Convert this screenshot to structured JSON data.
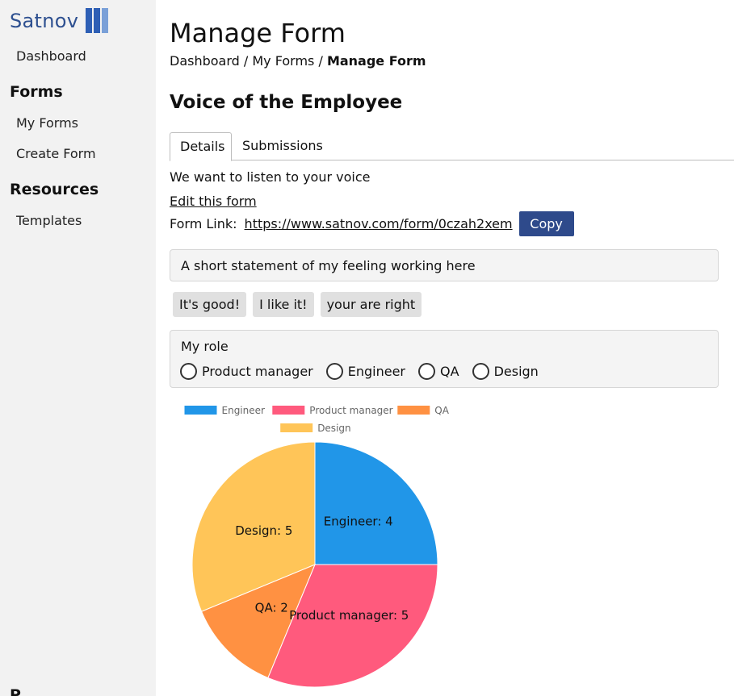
{
  "sidebar": {
    "brand": "Satnov",
    "brand_colors": [
      "#2e5fb5",
      "#2e5fb5",
      "#7aa0d8"
    ],
    "dashboard": "Dashboard",
    "forms_heading": "Forms",
    "my_forms": "My Forms",
    "create_form": "Create Form",
    "resources_heading": "Resources",
    "templates": "Templates",
    "cut_off_heading": "P"
  },
  "header": {
    "title": "Manage Form",
    "breadcrumb": {
      "dashboard": "Dashboard",
      "separator": " / ",
      "my_forms": "My Forms",
      "current": "Manage Form"
    }
  },
  "form": {
    "title": "Voice of the Employee",
    "tabs": [
      {
        "label": "Details",
        "active": true
      },
      {
        "label": "Submissions",
        "active": false
      }
    ],
    "description": "We want to listen to your voice",
    "edit_link": "Edit this form",
    "link_label": "Form Link:",
    "link_url": "https://www.satnov.com/form/0czah2xem",
    "copy_button": "Copy",
    "accent_color": "#2e4a8b"
  },
  "questions": {
    "q1": {
      "label": "A short statement of my feeling working here",
      "answers": [
        "It's good!",
        "I like it!",
        "your are right"
      ]
    },
    "q2": {
      "label": "My role",
      "options": [
        "Product manager",
        "Engineer",
        "QA",
        "Design"
      ],
      "selected": null
    }
  },
  "chart_data": {
    "type": "pie",
    "title": "",
    "legend_position": "top",
    "categories": [
      "Engineer",
      "Product manager",
      "QA",
      "Design"
    ],
    "values": [
      4,
      5,
      2,
      5
    ],
    "colors": [
      "#2196e8",
      "#ff5a7d",
      "#ff9142",
      "#ffc558"
    ],
    "slice_labels": [
      "Engineer: 4",
      "Product manager: 5",
      "QA: 2",
      "Design: 5"
    ]
  }
}
